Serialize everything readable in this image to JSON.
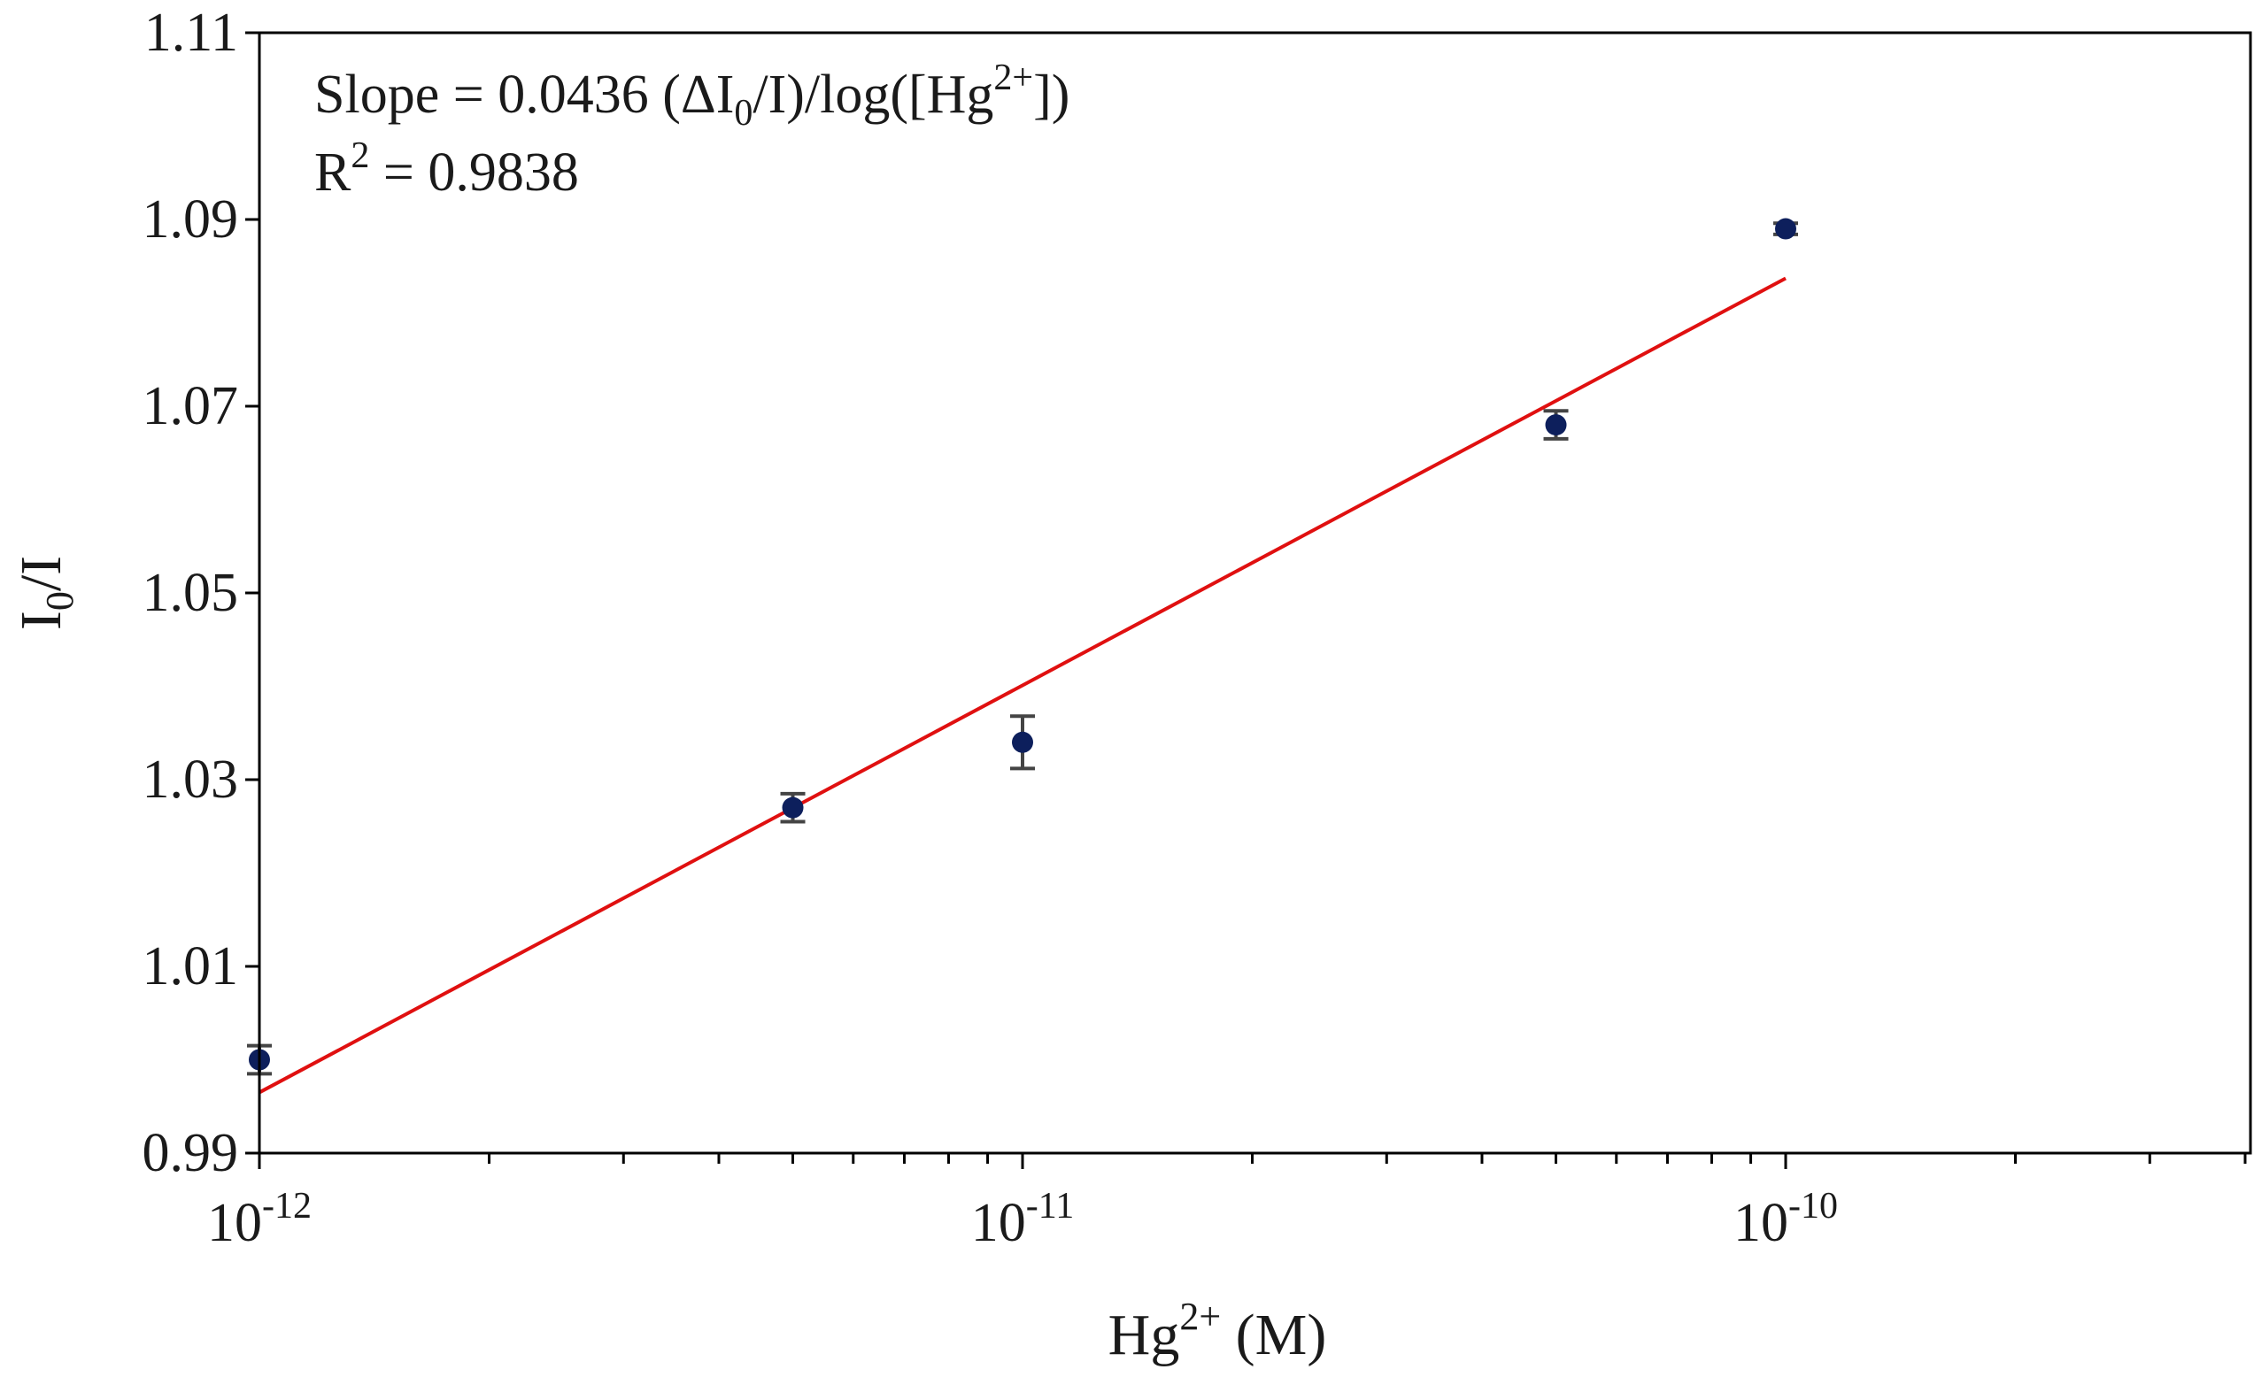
{
  "chart_data": {
    "type": "scatter",
    "title": "",
    "xlabel": {
      "base": "Hg",
      "sup": "2+",
      "rest": " (M)"
    },
    "ylabel": {
      "base": "I",
      "sub": "0",
      "rest": "/I"
    },
    "x_scale": "log",
    "xlim": [
      1e-12,
      4.5e-10
    ],
    "ylim": [
      0.99,
      1.11
    ],
    "x_ticks": [
      {
        "value": 1e-12,
        "base": "10",
        "exp": "-12"
      },
      {
        "value": 1e-11,
        "base": "10",
        "exp": "-11"
      },
      {
        "value": 1e-10,
        "base": "10",
        "exp": "-10"
      }
    ],
    "y_ticks": [
      {
        "value": 0.99,
        "label": "0.99"
      },
      {
        "value": 1.01,
        "label": "1.01"
      },
      {
        "value": 1.03,
        "label": "1.03"
      },
      {
        "value": 1.05,
        "label": "1.05"
      },
      {
        "value": 1.07,
        "label": "1.07"
      },
      {
        "value": 1.09,
        "label": "1.09"
      },
      {
        "value": 1.11,
        "label": "1.11"
      }
    ],
    "grid": false,
    "legend": "none",
    "series": [
      {
        "marker_color": "#0d1f5c",
        "errorbar_color": "#444444",
        "points": [
          {
            "x": 1e-12,
            "y": 1.0,
            "err": 0.0015
          },
          {
            "x": 5e-12,
            "y": 1.027,
            "err": 0.0015
          },
          {
            "x": 1e-11,
            "y": 1.034,
            "err": 0.0028
          },
          {
            "x": 5e-11,
            "y": 1.068,
            "err": 0.0015
          },
          {
            "x": 1e-10,
            "y": 1.089,
            "err": 0.0006
          }
        ]
      }
    ],
    "fit_line": {
      "color": "#e01010",
      "x": [
        1e-12,
        1e-10
      ],
      "y": [
        0.9965,
        1.0837
      ]
    },
    "annotations": {
      "slope": {
        "prefix": "Slope = 0.0436 (ΔI",
        "sub1": "0",
        "mid": "/I)/log([Hg",
        "sup1": "2+",
        "suffix": "])"
      },
      "r2": {
        "prefix": "R",
        "sup": "2",
        "suffix": " = 0.9838"
      }
    }
  }
}
